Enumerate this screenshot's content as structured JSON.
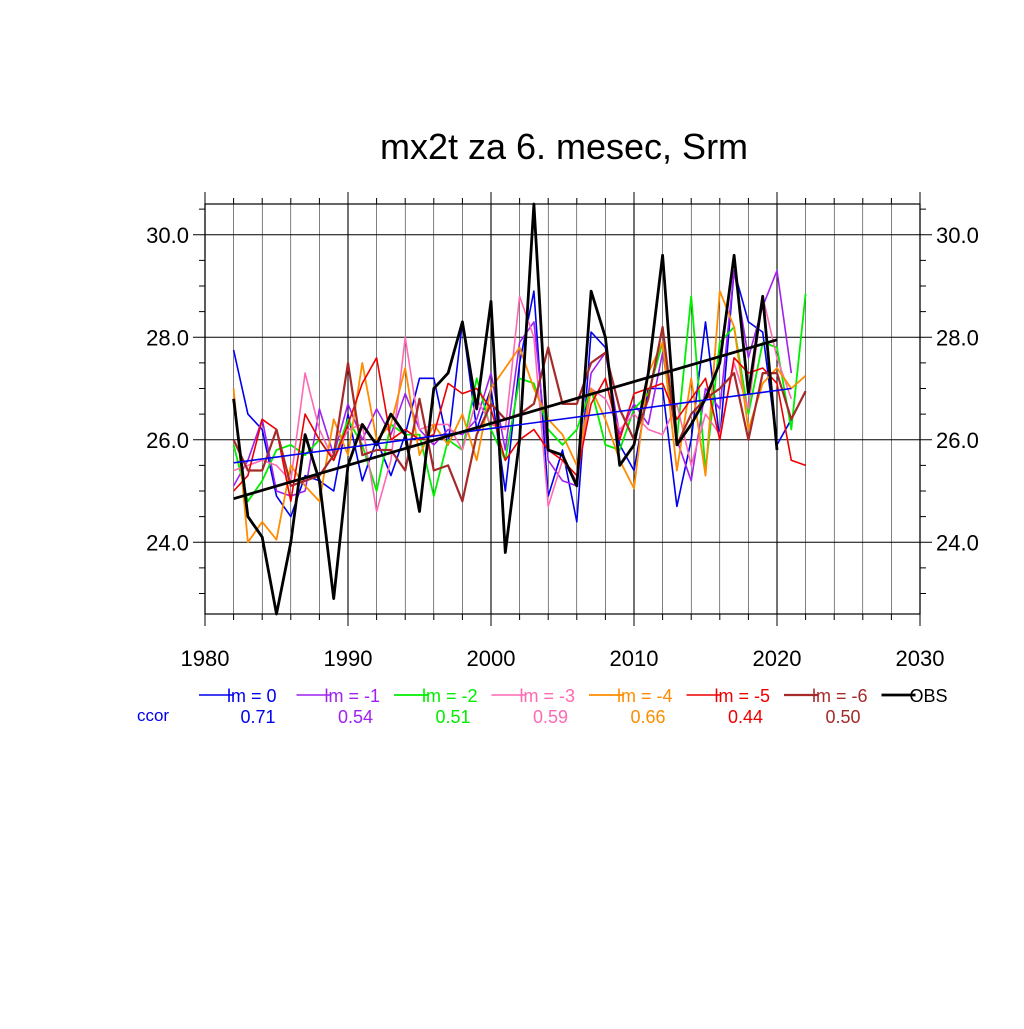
{
  "chart_data": {
    "type": "line",
    "title": "mx2t za 6. mesec, Srm",
    "xlim": [
      1980,
      2030
    ],
    "ylim": [
      22.6,
      30.6
    ],
    "x_ticks": [
      "1980",
      "1990",
      "2000",
      "2010",
      "2020",
      "2030"
    ],
    "y_ticks": [
      "24.0",
      "26.0",
      "28.0",
      "30.0"
    ],
    "grid": true,
    "legend_position": "bottom",
    "ccor_label": "ccor",
    "x": [
      1982,
      1983,
      1984,
      1985,
      1986,
      1987,
      1988,
      1989,
      1990,
      1991,
      1992,
      1993,
      1994,
      1995,
      1996,
      1997,
      1998,
      1999,
      2000,
      2001,
      2002,
      2003,
      2004,
      2005,
      2006,
      2007,
      2008,
      2009,
      2010,
      2011,
      2012,
      2013,
      2014,
      2015,
      2016,
      2017,
      2018,
      2019,
      2020,
      2021,
      2022
    ],
    "series": [
      {
        "name": "lm = 0",
        "color": "#0000ee",
        "ccor": "0.71",
        "width": 1.6,
        "values": [
          27.75,
          26.5,
          26.2,
          24.9,
          24.5,
          25.3,
          25.2,
          25.0,
          26.5,
          25.2,
          26.0,
          25.3,
          26.1,
          27.2,
          27.2,
          25.9,
          28.3,
          26.2,
          27.0,
          25.0,
          27.5,
          28.9,
          24.9,
          25.8,
          24.4,
          28.1,
          27.8,
          25.9,
          25.4,
          27.0,
          27.0,
          24.7,
          26.0,
          28.3,
          26.0,
          29.3,
          28.3,
          28.1,
          25.9,
          26.4,
          null
        ],
        "trend": [
          [
            1982,
            25.55
          ],
          [
            2021,
            27.0
          ]
        ]
      },
      {
        "name": "lm = -1",
        "color": "#a020f0",
        "ccor": "0.54",
        "width": 1.6,
        "values": [
          25.1,
          25.6,
          26.4,
          25.0,
          24.9,
          25.0,
          26.6,
          25.7,
          26.7,
          26.0,
          26.6,
          26.1,
          26.9,
          26.2,
          25.9,
          26.2,
          26.1,
          26.4,
          27.3,
          25.8,
          27.9,
          28.3,
          25.6,
          25.2,
          25.1,
          27.3,
          27.7,
          26.1,
          26.7,
          26.3,
          27.7,
          26.0,
          25.2,
          27.0,
          26.6,
          29.3,
          27.6,
          28.6,
          29.3,
          27.3,
          null
        ]
      },
      {
        "name": "lm = -2",
        "color": "#00ee00",
        "ccor": "0.51",
        "width": 1.8,
        "values": [
          25.9,
          24.8,
          25.2,
          25.8,
          25.9,
          25.7,
          26.0,
          25.6,
          26.4,
          25.9,
          25.0,
          26.3,
          26.1,
          26.1,
          24.9,
          26.0,
          25.8,
          27.2,
          26.2,
          25.6,
          27.2,
          27.1,
          26.2,
          25.9,
          26.2,
          27.0,
          25.9,
          25.8,
          26.6,
          26.9,
          27.9,
          26.0,
          28.8,
          25.4,
          27.9,
          28.2,
          26.5,
          27.9,
          27.8,
          26.2,
          28.85
        ]
      },
      {
        "name": "lm = -3",
        "color": "#ff69b4",
        "ccor": "0.59",
        "width": 1.6,
        "values": [
          25.4,
          25.5,
          25.6,
          25.5,
          25.2,
          27.3,
          26.2,
          25.6,
          26.2,
          26.3,
          24.6,
          25.6,
          28.0,
          26.2,
          26.3,
          26.3,
          25.8,
          26.8,
          26.3,
          26.2,
          28.8,
          28.0,
          24.7,
          25.6,
          25.2,
          27.0,
          26.8,
          26.2,
          26.5,
          26.2,
          26.1,
          26.7,
          25.5,
          26.5,
          26.1,
          27.5,
          26.6,
          28.8,
          27.6,
          26.8,
          null
        ]
      },
      {
        "name": "lm = -4",
        "color": "#ff8c00",
        "ccor": "0.66",
        "width": 1.8,
        "values": [
          27.0,
          24.0,
          24.4,
          24.05,
          25.5,
          25.1,
          24.8,
          26.4,
          25.7,
          27.5,
          26.0,
          26.3,
          27.4,
          25.7,
          26.3,
          25.9,
          26.5,
          25.6,
          27.0,
          27.4,
          27.8,
          27.0,
          26.4,
          26.1,
          25.5,
          27.0,
          26.4,
          25.6,
          25.05,
          27.3,
          27.9,
          25.4,
          27.2,
          25.3,
          28.9,
          28.2,
          26.2,
          27.1,
          27.4,
          27.0,
          27.25
        ]
      },
      {
        "name": "lm = -5",
        "color": "#ee0000",
        "ccor": "0.44",
        "width": 1.6,
        "values": [
          25.0,
          25.3,
          26.4,
          26.2,
          24.8,
          26.5,
          26.0,
          25.6,
          26.3,
          27.1,
          27.6,
          26.0,
          26.2,
          26.0,
          26.1,
          27.1,
          26.9,
          27.0,
          26.6,
          25.6,
          26.0,
          26.2,
          25.8,
          25.6,
          25.3,
          26.7,
          27.2,
          26.0,
          26.9,
          27.0,
          27.1,
          26.4,
          26.8,
          27.2,
          26.0,
          27.6,
          27.3,
          27.4,
          27.1,
          25.6,
          25.5
        ]
      },
      {
        "name": "lm = -6",
        "color": "#a52a2a",
        "ccor": "0.50",
        "width": 2.2,
        "values": [
          26.0,
          25.4,
          25.4,
          26.2,
          25.1,
          25.2,
          25.3,
          25.7,
          27.5,
          25.7,
          25.8,
          25.8,
          25.4,
          26.8,
          25.4,
          25.5,
          24.8,
          26.1,
          26.7,
          26.4,
          26.5,
          26.7,
          27.8,
          26.7,
          26.7,
          27.5,
          27.7,
          26.6,
          26.0,
          26.8,
          28.2,
          25.9,
          26.5,
          26.8,
          27.0,
          27.3,
          26.0,
          27.3,
          27.3,
          26.4,
          26.95
        ]
      },
      {
        "name": "OBS",
        "color": "#000000",
        "width": 2.8,
        "values": [
          26.8,
          24.5,
          24.1,
          22.6,
          24.0,
          26.1,
          25.2,
          22.9,
          25.5,
          26.3,
          25.9,
          26.5,
          26.1,
          24.6,
          27.0,
          27.3,
          28.3,
          26.6,
          28.7,
          23.8,
          26.0,
          30.6,
          25.8,
          25.7,
          25.1,
          28.9,
          28.0,
          25.5,
          25.9,
          27.3,
          29.6,
          25.9,
          26.3,
          26.8,
          27.5,
          29.6,
          26.9,
          28.8,
          25.8,
          null,
          null
        ],
        "trend": [
          [
            1982,
            24.85
          ],
          [
            2020,
            27.95
          ]
        ]
      }
    ]
  }
}
